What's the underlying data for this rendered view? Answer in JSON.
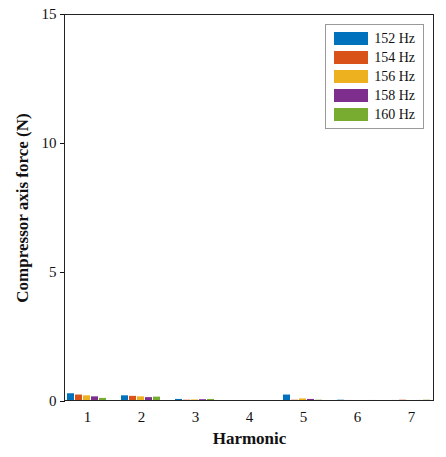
{
  "chart_data": {
    "type": "bar",
    "x_label": "Harmonic",
    "y_label": "Compressor axis force (N)",
    "categories": [
      1,
      2,
      3,
      4,
      5,
      6,
      7
    ],
    "series": [
      {
        "name": "152 Hz",
        "color": "#0072BD",
        "values": [
          0.3,
          0.22,
          0.08,
          0.03,
          0.25,
          0.05,
          0.04
        ]
      },
      {
        "name": "154 Hz",
        "color": "#D95319",
        "values": [
          0.25,
          0.2,
          0.05,
          0.02,
          0.05,
          0.04,
          0.05
        ]
      },
      {
        "name": "156 Hz",
        "color": "#EDB120",
        "values": [
          0.22,
          0.18,
          0.06,
          0.02,
          0.1,
          0.03,
          0.03
        ]
      },
      {
        "name": "158 Hz",
        "color": "#7E2F8E",
        "values": [
          0.18,
          0.15,
          0.07,
          0.02,
          0.08,
          0.03,
          0.04
        ]
      },
      {
        "name": "160 Hz",
        "color": "#77AC30",
        "values": [
          0.12,
          0.17,
          0.08,
          0.03,
          0.05,
          0.04,
          0.05
        ]
      }
    ],
    "ylim": [
      0,
      15
    ],
    "yticks": [
      0,
      5,
      10,
      15
    ],
    "legend": "top-right",
    "grid": false
  }
}
